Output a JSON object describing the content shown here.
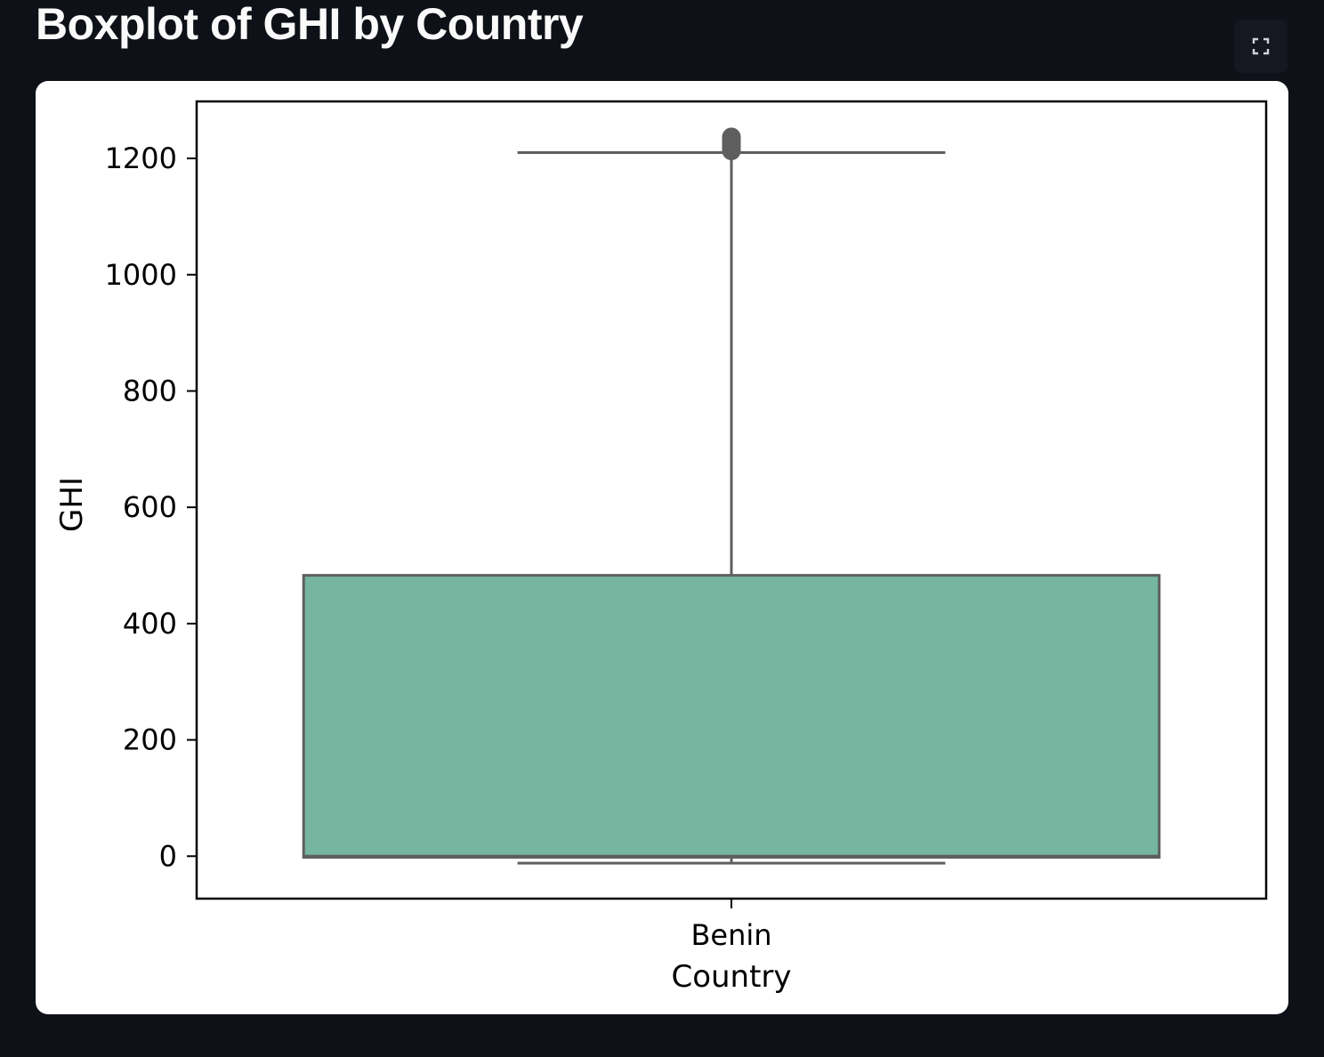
{
  "page": {
    "title": "Boxplot of GHI by Country",
    "fullscreen_icon": "expand-icon"
  },
  "colors": {
    "background": "#0e1117",
    "card": "#ffffff",
    "box_fill": "#76b5a0",
    "box_stroke": "#5f5f5f"
  },
  "chart_data": {
    "type": "box",
    "title": "",
    "xlabel": "Country",
    "ylabel": "GHI",
    "categories": [
      "Benin"
    ],
    "boxes": [
      {
        "category": "Benin",
        "whisker_low": -12,
        "q1": -2,
        "median": 0,
        "q3": 483,
        "whisker_high": 1210,
        "outliers": [
          1213,
          1216,
          1219,
          1222,
          1225,
          1228,
          1231,
          1234,
          1237
        ]
      }
    ],
    "ylim": [
      -73,
      1298
    ],
    "yticks": [
      0,
      200,
      400,
      600,
      800,
      1000,
      1200
    ],
    "grid": false
  }
}
